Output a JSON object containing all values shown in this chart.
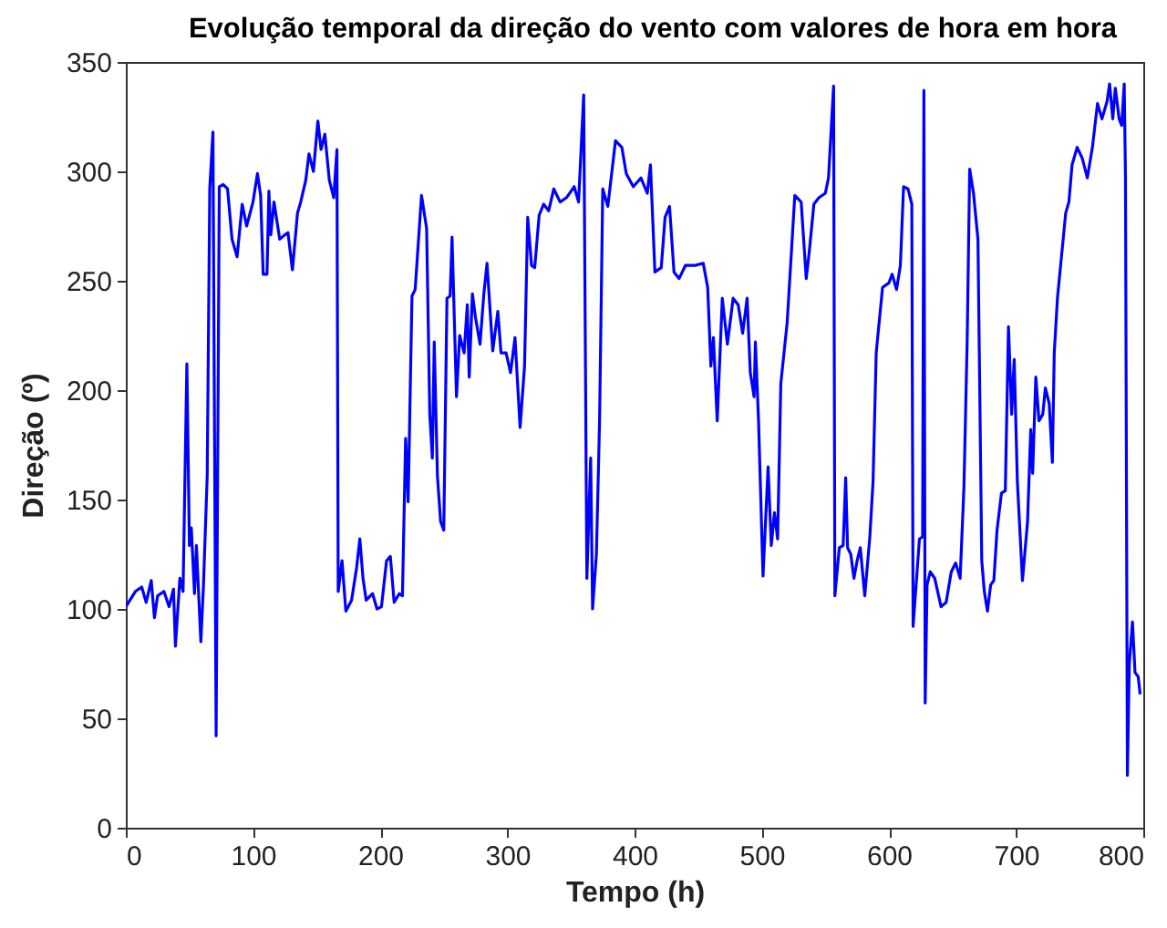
{
  "chart_data": {
    "type": "line",
    "title": "Evolução temporal da direção do vento com valores de hora em hora",
    "xlabel": "Tempo (h)",
    "ylabel": "Direção (º)",
    "xlim": [
      0,
      800
    ],
    "xticks": [
      0,
      100,
      200,
      300,
      400,
      500,
      600,
      700,
      800
    ],
    "ylim": [
      0,
      350
    ],
    "yticks": [
      0,
      50,
      100,
      150,
      200,
      250,
      300,
      350
    ],
    "x": [
      0,
      7.5,
      12.5,
      16,
      20,
      22.5,
      25,
      30,
      34,
      37.5,
      39,
      42.5,
      45,
      48,
      50,
      51.5,
      54,
      55.5,
      59,
      61,
      64,
      66,
      68.5,
      71,
      73.5,
      76.5,
      80,
      83.5,
      87.5,
      91.5,
      95,
      100,
      103.5,
      106,
      108,
      111,
      112.5,
      114,
      116.5,
      121,
      125,
      127.5,
      131,
      135,
      137.5,
      141.5,
      144,
      147.5,
      151,
      153.5,
      156.5,
      160,
      163.5,
      166,
      167,
      170,
      173,
      177.5,
      181.5,
      184,
      186.5,
      189,
      194,
      197.5,
      201,
      205,
      208,
      211,
      215,
      217.5,
      220,
      222,
      225,
      227.5,
      232.5,
      236.5,
      239,
      241,
      242.5,
      245,
      247.5,
      250,
      252.5,
      255,
      256.5,
      260,
      262.5,
      266,
      268.5,
      270,
      272.5,
      275,
      278.5,
      281.5,
      284,
      288.5,
      292.5,
      295,
      299,
      302.5,
      306,
      310,
      313.5,
      316,
      319,
      321.5,
      325,
      328.5,
      332.5,
      336.5,
      341.5,
      346.5,
      352.5,
      356,
      360,
      362.5,
      365.5,
      367,
      370,
      372.5,
      375,
      379,
      385,
      390,
      393.5,
      399,
      405,
      410,
      412.5,
      416,
      421,
      424,
      427.5,
      431,
      435,
      440,
      447.5,
      454,
      457.5,
      460,
      462,
      465,
      469,
      473,
      477.5,
      481.5,
      485,
      488.5,
      491,
      494,
      495,
      497.5,
      501,
      505,
      507.5,
      510,
      512.5,
      515,
      520,
      526,
      531,
      535,
      537.5,
      541,
      545,
      550,
      552.5,
      556.5,
      557.5,
      561,
      564,
      566,
      567.5,
      570,
      572.5,
      575,
      577.5,
      581,
      585,
      587.5,
      590,
      595,
      600,
      602.5,
      606,
      609,
      611.5,
      615,
      618,
      619,
      621,
      624,
      626.5,
      627.5,
      628.5,
      630,
      632.5,
      636,
      641,
      645,
      649,
      652.5,
      656,
      659,
      661.5,
      663.5,
      666.5,
      670,
      673,
      675,
      677.5,
      680,
      682.5,
      685,
      688.5,
      691.5,
      694,
      696.5,
      698.5,
      701,
      705,
      709,
      711.5,
      713,
      715.5,
      718,
      721,
      723,
      726,
      728.5,
      730,
      732.5,
      735,
      739,
      741.5,
      744,
      748,
      752,
      756,
      760,
      764,
      767.5,
      771.5,
      773.5,
      776,
      778,
      781,
      783,
      785,
      786,
      787.5,
      789,
      791.5,
      793.5,
      796,
      797.5
    ],
    "series": [
      {
        "color": "#0000ff",
        "values": [
          101,
          108,
          110,
          103,
          113,
          96,
          106,
          108,
          101,
          109,
          83,
          114,
          108,
          212,
          129,
          137,
          107,
          129,
          85,
          110,
          161,
          292,
          318,
          42,
          293,
          294,
          292,
          269,
          261,
          285,
          275,
          286,
          299,
          289,
          253,
          253,
          291,
          271,
          286,
          269,
          271,
          272,
          255,
          281,
          286,
          296,
          308,
          300,
          323,
          310,
          317,
          296,
          288,
          310,
          108,
          122,
          99,
          104,
          119,
          132,
          114,
          104,
          107,
          100,
          101,
          122,
          124,
          103,
          107,
          106,
          178,
          149,
          243,
          246,
          289,
          274,
          189,
          169,
          222,
          161,
          140,
          136,
          242,
          243,
          270,
          197,
          225,
          217,
          239,
          206,
          244,
          233,
          221,
          244,
          258,
          218,
          236,
          217,
          217,
          208,
          224,
          183,
          211,
          279,
          257,
          256,
          280,
          285,
          282,
          292,
          286,
          288,
          293,
          286,
          335,
          114,
          169,
          100,
          125,
          186,
          292,
          284,
          314,
          311,
          299,
          293,
          297,
          290,
          303,
          254,
          256,
          279,
          284,
          254,
          251,
          257,
          257,
          258,
          247,
          211,
          224,
          186,
          242,
          221,
          242,
          239,
          226,
          242,
          208,
          197,
          222,
          186,
          115,
          165,
          129,
          144,
          132,
          203,
          231,
          289,
          286,
          251,
          264,
          285,
          288,
          290,
          297,
          339,
          106,
          128,
          129,
          160,
          128,
          125,
          114,
          122,
          128,
          106,
          133,
          158,
          217,
          247,
          249,
          253,
          246,
          257,
          293,
          292,
          285,
          92,
          108,
          132,
          133,
          337,
          57,
          111,
          117,
          114,
          101,
          103,
          117,
          121,
          114,
          156,
          222,
          301,
          290,
          269,
          122,
          108,
          99,
          111,
          113,
          136,
          153,
          154,
          229,
          189,
          214,
          158,
          113,
          140,
          182,
          162,
          206,
          186,
          189,
          201,
          194,
          167,
          217,
          242,
          257,
          281,
          286,
          303,
          311,
          306,
          297,
          311,
          331,
          324,
          332,
          340,
          324,
          338,
          324,
          321,
          340,
          297,
          24,
          75,
          94,
          71,
          69,
          61
        ]
      }
    ]
  }
}
